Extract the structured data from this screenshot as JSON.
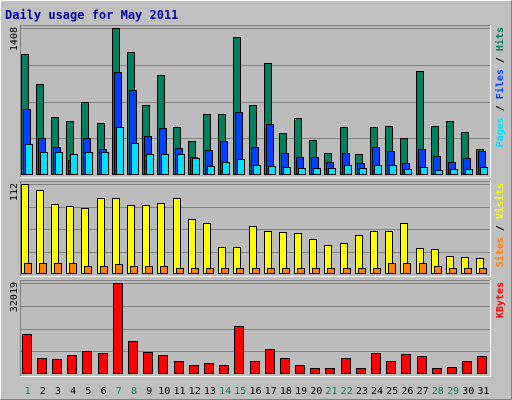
{
  "chart_data": {
    "type": "bar",
    "title": "Daily usage for May 2011",
    "categories": [
      "1",
      "2",
      "3",
      "4",
      "5",
      "6",
      "7",
      "8",
      "9",
      "10",
      "11",
      "12",
      "13",
      "14",
      "15",
      "16",
      "17",
      "18",
      "19",
      "20",
      "21",
      "22",
      "23",
      "24",
      "25",
      "26",
      "27",
      "28",
      "29",
      "30",
      "31"
    ],
    "weekend_days": [
      "1",
      "7",
      "8",
      "14",
      "15",
      "21",
      "22",
      "28",
      "29"
    ],
    "colors": {
      "background": "#c0c0c0",
      "plot": "#bcbcbc",
      "hits": "#00805c",
      "files": "#0040ff",
      "pages": "#00e0ff",
      "visits": "#ffff00",
      "sites": "#ff8000",
      "kbytes": "#ff0000",
      "weekend_label": "#00805c",
      "weekday_label": "#000000"
    },
    "panels": [
      {
        "id": "top",
        "scale_label": "1408",
        "ylim": [
          0,
          1408
        ],
        "series": [
          {
            "name": "Hits",
            "values": [
              1158,
              868,
              560,
              522,
              702,
              502,
              1408,
              1180,
              668,
              962,
              458,
              325,
              582,
              580,
              1318,
              672,
              1068,
              400,
              546,
              340,
              210,
              464,
              204,
              456,
              468,
              350,
              1000,
              474,
              522,
              412,
              248
            ]
          },
          {
            "name": "Files",
            "values": [
              630,
              355,
              272,
              148,
              350,
              245,
              990,
              810,
              370,
              450,
              255,
              170,
              240,
              330,
              600,
              270,
              490,
              210,
              170,
              170,
              120,
              210,
              115,
              270,
              230,
              112,
              250,
              185,
              120,
              165,
              230
            ]
          },
          {
            "name": "Pages",
            "values": [
              300,
              218,
              218,
              200,
              222,
              220,
              460,
              310,
              200,
              205,
              200,
              160,
              87,
              120,
              150,
              100,
              90,
              80,
              70,
              70,
              70,
              100,
              70,
              100,
              100,
              60,
              80,
              50,
              60,
              60,
              80
            ]
          }
        ],
        "legend": [
          "Pages",
          "Files",
          "Hits"
        ]
      },
      {
        "id": "mid",
        "scale_label": "112",
        "ylim": [
          0,
          112
        ],
        "series": [
          {
            "name": "Visits",
            "values": [
              112,
              104,
              87,
              85,
              82,
              94,
              95,
              86,
              86,
              88,
              95,
              68,
              63,
              33,
              33,
              60,
              54,
              52,
              51,
              44,
              36,
              38,
              49,
              54,
              54,
              63,
              32,
              31,
              23,
              21,
              20
            ]
          },
          {
            "name": "Sites",
            "values": [
              14,
              14,
              14,
              14,
              10,
              10,
              12,
              10,
              10,
              10,
              8,
              8,
              8,
              8,
              8,
              8,
              8,
              8,
              8,
              8,
              8,
              8,
              8,
              8,
              14,
              14,
              14,
              10,
              8,
              8,
              8
            ]
          }
        ],
        "legend": [
          "Sites",
          "Visits"
        ]
      },
      {
        "id": "bot",
        "scale_label": "32019",
        "ylim": [
          0,
          32019
        ],
        "series": [
          {
            "name": "KBytes",
            "values": [
              13905,
              5735,
              5286,
              6545,
              8250,
              7487,
              32019,
              11665,
              7800,
              6850,
              4620,
              3200,
              4034,
              3210,
              16980,
              4400,
              8760,
              5500,
              3200,
              2200,
              2000,
              5700,
              2200,
              7500,
              4700,
              7200,
              6300,
              2200,
              2300,
              4400,
              6300
            ]
          }
        ],
        "legend": [
          "KBytes"
        ]
      }
    ]
  }
}
